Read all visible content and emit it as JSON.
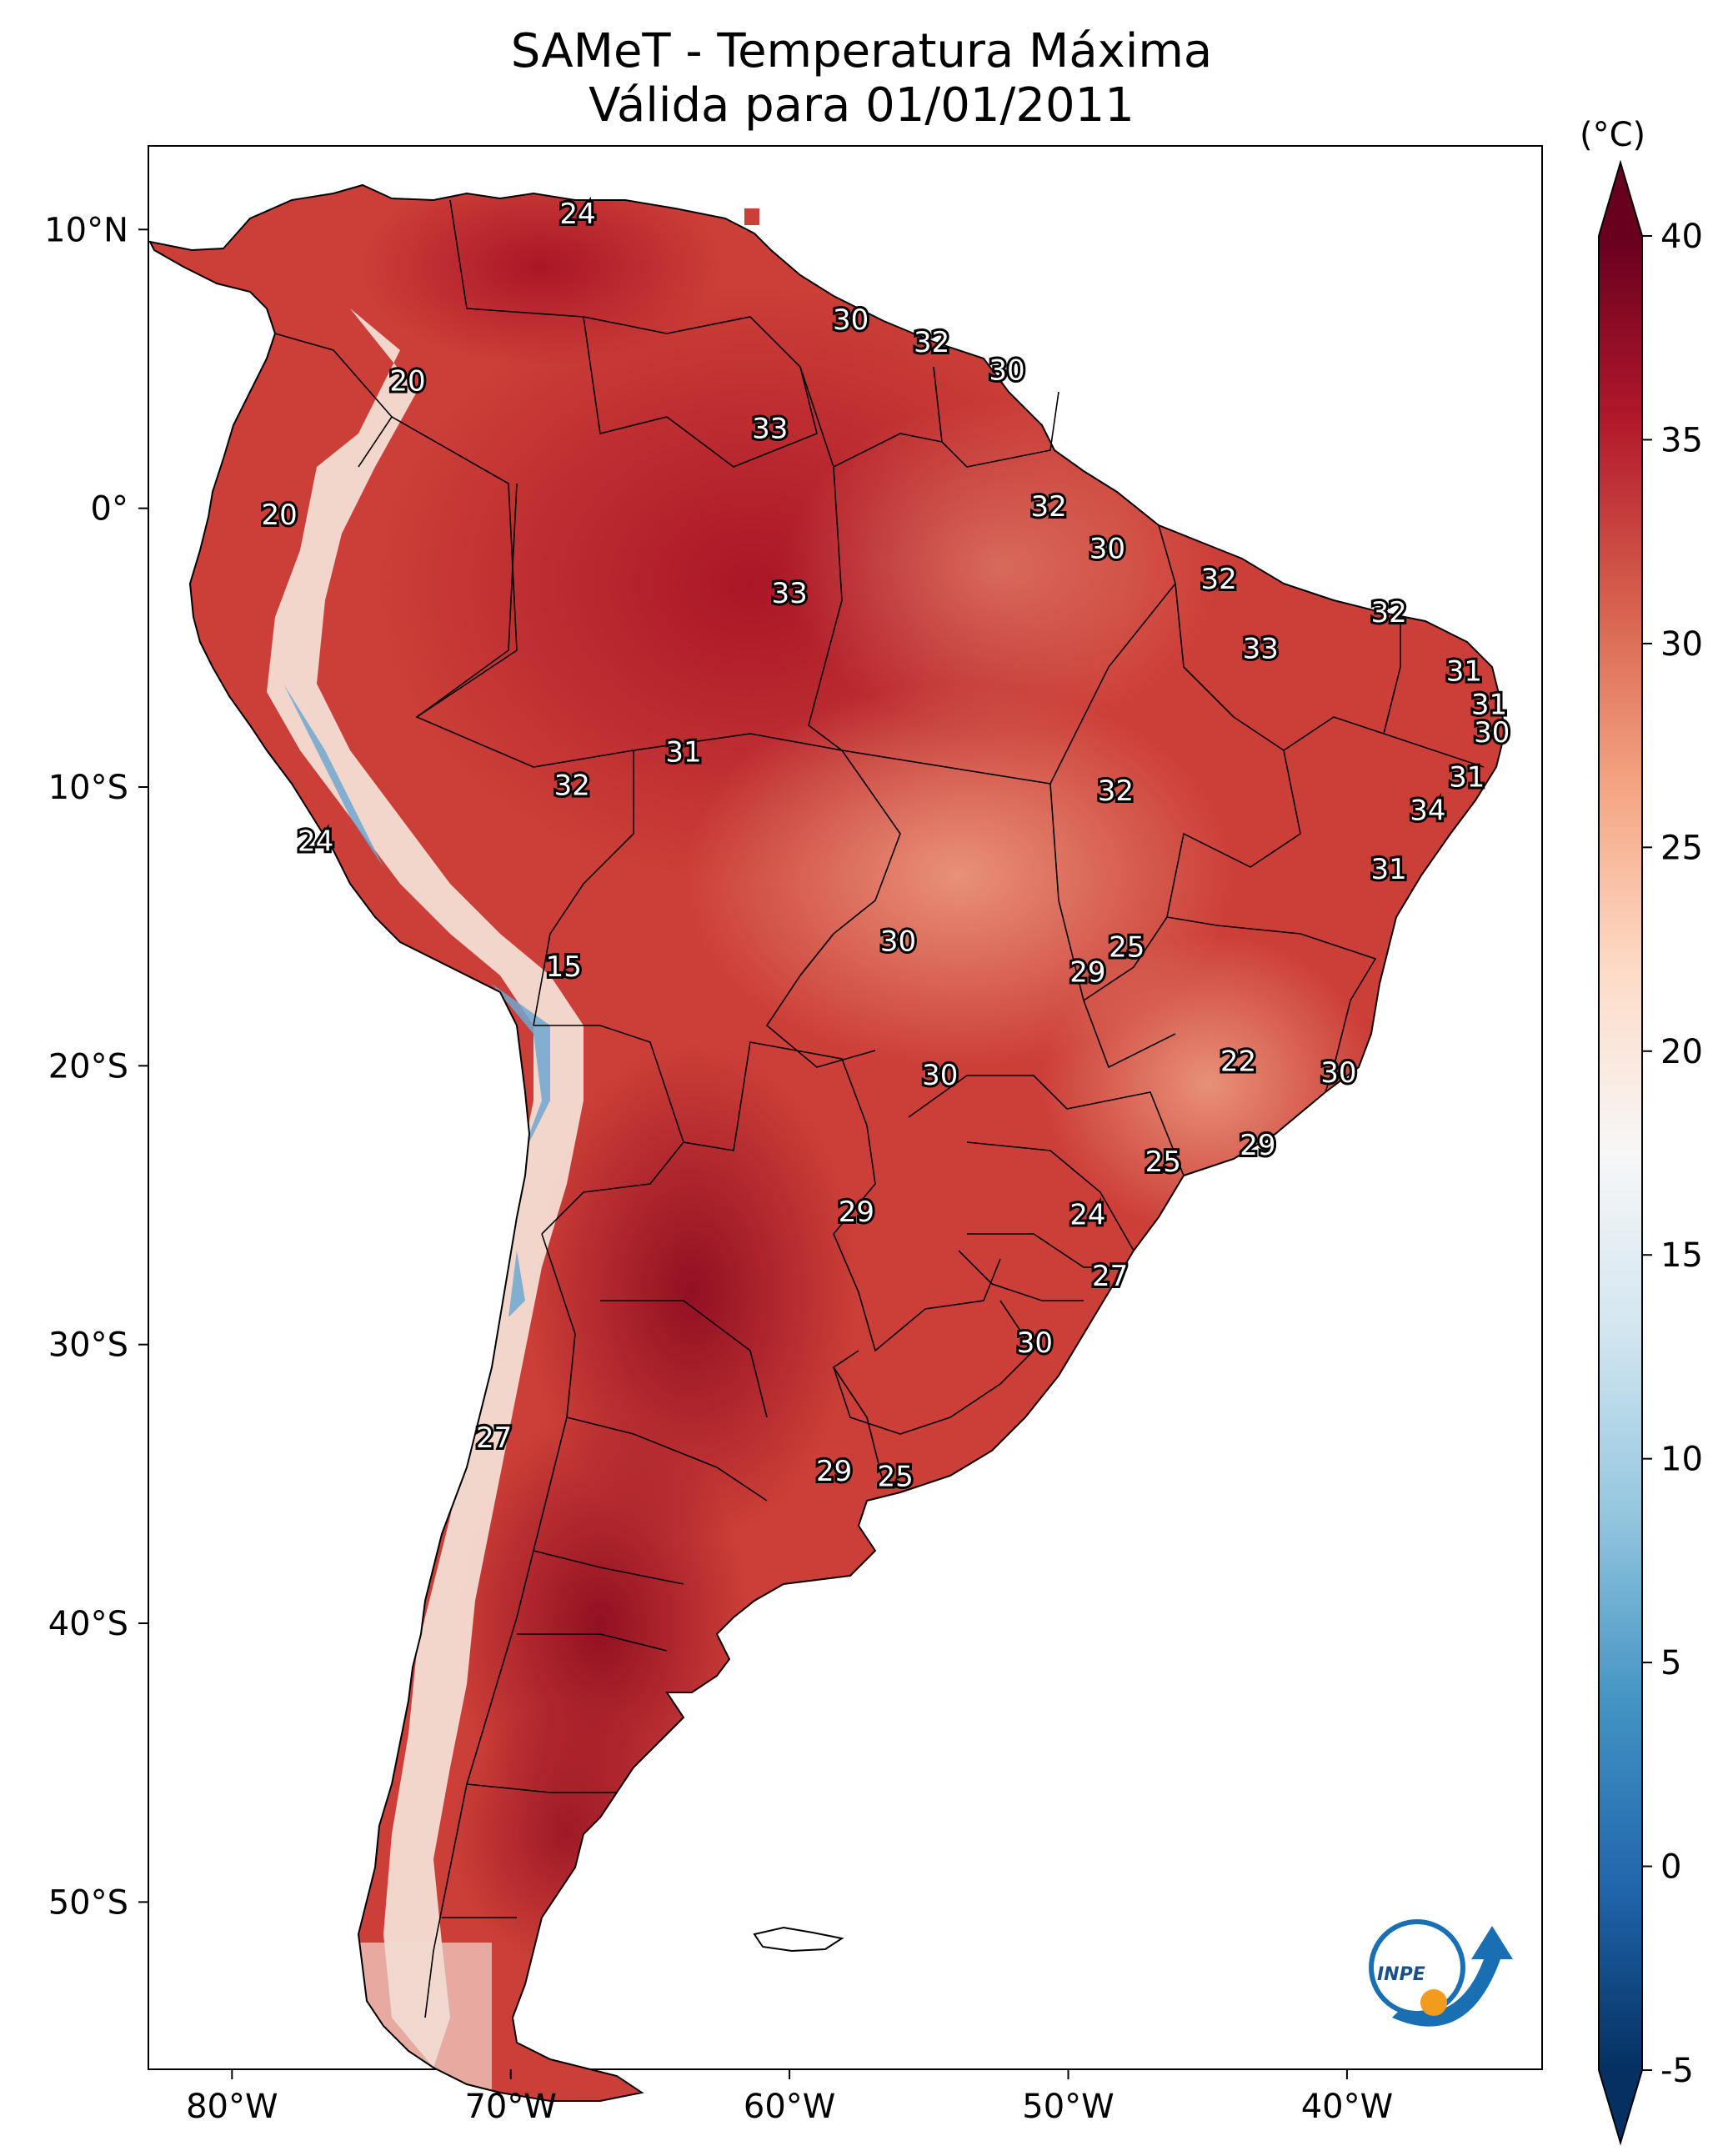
{
  "title": {
    "line1": "SAMeT - Temperatura Máxima",
    "line2": "Válida para 01/01/2011"
  },
  "colorbar": {
    "unit": "(°C)",
    "min": -5,
    "max": 40,
    "ticks": [
      "40",
      "35",
      "30",
      "25",
      "20",
      "15",
      "10",
      "5",
      "0",
      "-5"
    ],
    "extend": "both",
    "colors": [
      "#053061",
      "#2166ac",
      "#4393c3",
      "#92c5de",
      "#d1e5f0",
      "#f7f7f7",
      "#fddbc7",
      "#f4a582",
      "#d6604d",
      "#b2182b",
      "#67001f"
    ]
  },
  "axes": {
    "lon_ticks": [
      "80°W",
      "70°W",
      "60°W",
      "50°W",
      "40°W"
    ],
    "lat_ticks": [
      "10°N",
      "0°",
      "10°S",
      "20°S",
      "30°S",
      "40°S",
      "50°S"
    ],
    "lon_values": [
      -80,
      -70,
      -60,
      -50,
      -40
    ],
    "lat_values": [
      10,
      0,
      -10,
      -20,
      -30,
      -40,
      -50
    ]
  },
  "logo": {
    "text": "INPE"
  },
  "station_labels": [
    {
      "lon": -67.6,
      "lat": 10.5,
      "value": "24"
    },
    {
      "lon": -73.7,
      "lat": 4.5,
      "value": "20"
    },
    {
      "lon": -57.8,
      "lat": 6.7,
      "value": "30"
    },
    {
      "lon": -54.9,
      "lat": 5.9,
      "value": "32"
    },
    {
      "lon": -52.2,
      "lat": 4.9,
      "value": "30"
    },
    {
      "lon": -60.7,
      "lat": 2.8,
      "value": "33"
    },
    {
      "lon": -78.3,
      "lat": -0.3,
      "value": "20"
    },
    {
      "lon": -50.7,
      "lat": 0.0,
      "value": "32"
    },
    {
      "lon": -48.6,
      "lat": -1.5,
      "value": "30"
    },
    {
      "lon": -60.0,
      "lat": -3.1,
      "value": "33"
    },
    {
      "lon": -44.6,
      "lat": -2.6,
      "value": "32"
    },
    {
      "lon": -38.5,
      "lat": -3.8,
      "value": "32"
    },
    {
      "lon": -43.1,
      "lat": -5.1,
      "value": "33"
    },
    {
      "lon": -35.8,
      "lat": -5.9,
      "value": "31"
    },
    {
      "lon": -34.9,
      "lat": -7.1,
      "value": "31"
    },
    {
      "lon": -34.8,
      "lat": -8.1,
      "value": "30"
    },
    {
      "lon": -63.8,
      "lat": -8.8,
      "value": "31"
    },
    {
      "lon": -67.8,
      "lat": -10.0,
      "value": "32"
    },
    {
      "lon": -48.3,
      "lat": -10.2,
      "value": "32"
    },
    {
      "lon": -35.7,
      "lat": -9.7,
      "value": "31"
    },
    {
      "lon": -37.1,
      "lat": -10.9,
      "value": "34"
    },
    {
      "lon": -77.0,
      "lat": -12.0,
      "value": "24"
    },
    {
      "lon": -38.5,
      "lat": -13.0,
      "value": "31"
    },
    {
      "lon": -68.1,
      "lat": -16.5,
      "value": "15"
    },
    {
      "lon": -56.1,
      "lat": -15.6,
      "value": "30"
    },
    {
      "lon": -49.3,
      "lat": -16.7,
      "value": "29"
    },
    {
      "lon": -47.9,
      "lat": -15.8,
      "value": "25"
    },
    {
      "lon": -43.9,
      "lat": -19.9,
      "value": "22"
    },
    {
      "lon": -40.3,
      "lat": -20.3,
      "value": "30"
    },
    {
      "lon": -54.6,
      "lat": -20.4,
      "value": "30"
    },
    {
      "lon": -43.2,
      "lat": -22.9,
      "value": "29"
    },
    {
      "lon": -46.6,
      "lat": -23.5,
      "value": "25"
    },
    {
      "lon": -57.6,
      "lat": -25.3,
      "value": "29"
    },
    {
      "lon": -49.3,
      "lat": -25.4,
      "value": "24"
    },
    {
      "lon": -48.5,
      "lat": -27.6,
      "value": "27"
    },
    {
      "lon": -51.2,
      "lat": -30.0,
      "value": "30"
    },
    {
      "lon": -70.6,
      "lat": -33.4,
      "value": "27"
    },
    {
      "lon": -58.4,
      "lat": -34.6,
      "value": "29"
    },
    {
      "lon": -56.2,
      "lat": -34.8,
      "value": "25"
    }
  ]
}
